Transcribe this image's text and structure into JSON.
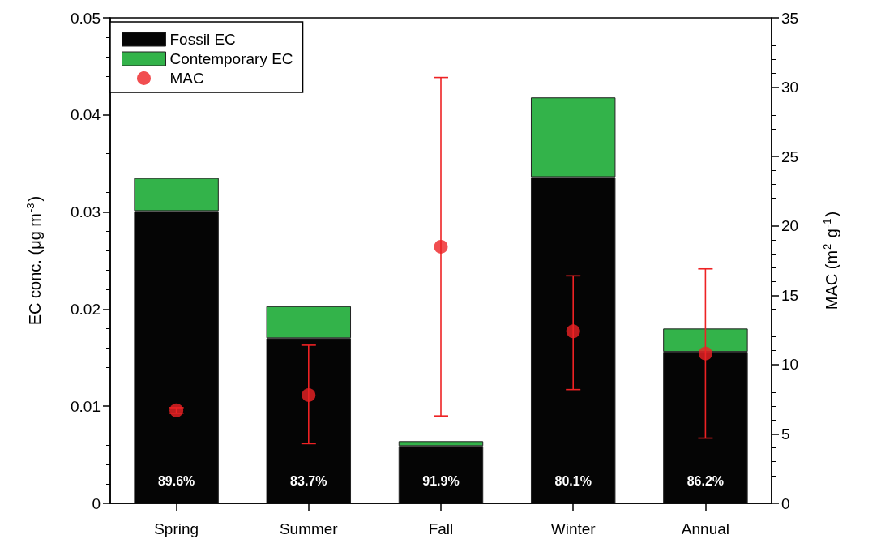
{
  "chart_data": {
    "type": "bar",
    "stacked": true,
    "categories": [
      "Spring",
      "Summer",
      "Fall",
      "Winter",
      "Annual"
    ],
    "ylabel": "EC conc. (μg m$^{-3}$)",
    "y2label": "MAC (m$^{2}$ g$^{-1}$)",
    "ylim": [
      0,
      0.05
    ],
    "yticks": [
      0,
      0.01,
      0.02,
      0.03,
      0.04,
      0.05
    ],
    "y2lim": [
      0,
      35
    ],
    "y2ticks": [
      0,
      5,
      10,
      15,
      20,
      25,
      30,
      35
    ],
    "legend": "top left",
    "grid": false,
    "annotations": [
      "89.6%",
      "83.7%",
      "91.9%",
      "80.1%",
      "86.2%"
    ],
    "series": [
      {
        "name": "Fossil EC",
        "color": "#050505",
        "values": [
          0.0301,
          0.017,
          0.0059,
          0.0336,
          0.0156
        ]
      },
      {
        "name": "Contemporary EC",
        "color": "#33b34a",
        "values": [
          0.0034,
          0.0033,
          0.0005,
          0.0082,
          0.0024
        ]
      },
      {
        "name": "MAC",
        "type": "scatter",
        "axis": "y2",
        "color": "#ee2224",
        "marker": "circle",
        "x": [
          "Spring",
          "Summer",
          "Fall",
          "Winter",
          "Annual"
        ],
        "values": [
          6.7,
          7.8,
          18.5,
          12.4,
          10.8
        ],
        "errors": [
          [
            6.5,
            6.9
          ],
          [
            4.3,
            11.4
          ],
          [
            6.3,
            30.7
          ],
          [
            8.2,
            16.4
          ],
          [
            4.7,
            16.9
          ]
        ]
      }
    ]
  }
}
